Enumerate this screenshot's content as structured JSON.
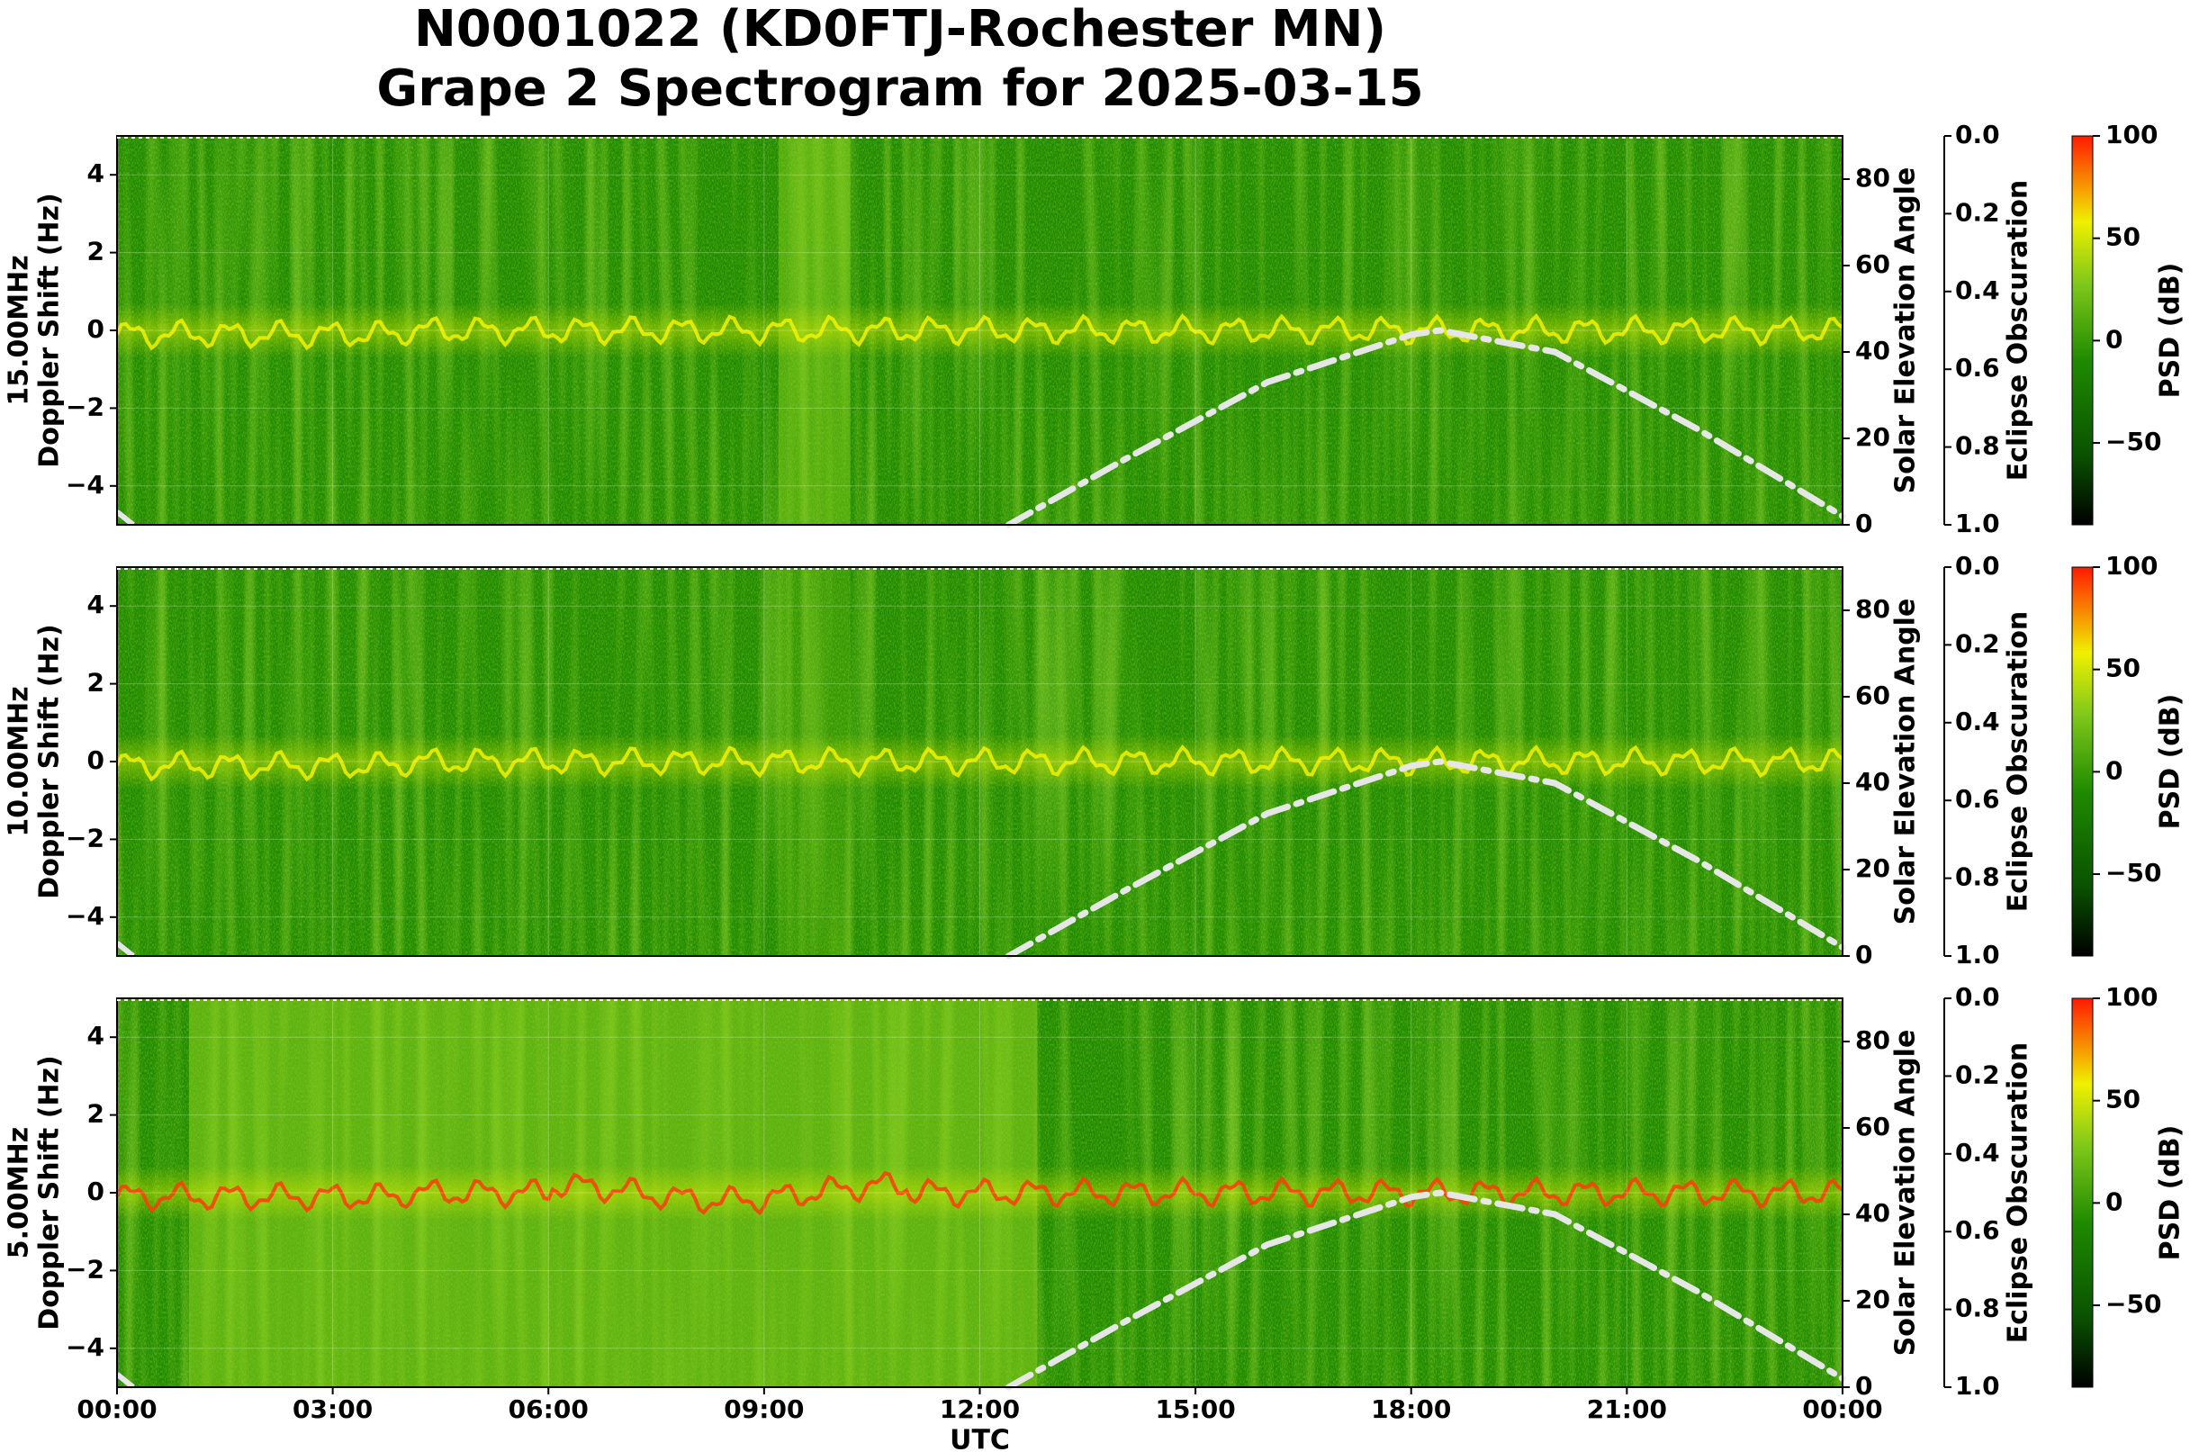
{
  "title_line1": "N0001022 (KD0FTJ-Rochester MN)",
  "title_line2": "Grape 2 Spectrogram for 2025-03-15",
  "colors": {
    "spectrogram_bg": "#1f8a00",
    "spectrogram_mid": "#8fd21f",
    "spectrogram_high": "#f2f200",
    "carrier": "#ff3b0a",
    "solar_curve": "#e6e6e6"
  },
  "chart_data": [
    {
      "type": "heatmap",
      "frequency_label": "15.00MHz",
      "ylabel": "Doppler Shift (Hz)",
      "ylim": [
        -5,
        5
      ],
      "yticks": [
        "4",
        "2",
        "0",
        "−2",
        "−4"
      ],
      "xlim": [
        "00:00",
        "24:00"
      ],
      "right_axis_1": {
        "label": "Solar Elevation Angle",
        "ylim": [
          0,
          90
        ],
        "ticks": [
          "80",
          "60",
          "40",
          "20",
          "0"
        ]
      },
      "right_axis_2": {
        "label": "Eclipse Obscuration",
        "ylim": [
          1.0,
          0.0
        ],
        "ticks": [
          "0.0",
          "0.2",
          "0.4",
          "0.6",
          "0.8",
          "1.0"
        ]
      },
      "colorbar": {
        "label": "PSD (dB)",
        "ticks": [
          "100",
          "50",
          "0",
          "−50"
        ]
      },
      "solar_elevation": {
        "x_hours": [
          12.4,
          14,
          16,
          18,
          18.4,
          20,
          22,
          24
        ],
        "y_degrees": [
          0,
          15,
          33,
          44,
          45,
          40,
          22,
          2
        ]
      }
    },
    {
      "type": "heatmap",
      "frequency_label": "10.00MHz",
      "ylabel": "Doppler Shift (Hz)",
      "ylim": [
        -5,
        5
      ],
      "yticks": [
        "4",
        "2",
        "0",
        "−2",
        "−4"
      ],
      "xlim": [
        "00:00",
        "24:00"
      ],
      "right_axis_1": {
        "label": "Solar Elevation Angle",
        "ylim": [
          0,
          90
        ],
        "ticks": [
          "80",
          "60",
          "40",
          "20",
          "0"
        ]
      },
      "right_axis_2": {
        "label": "Eclipse Obscuration",
        "ylim": [
          1.0,
          0.0
        ],
        "ticks": [
          "0.0",
          "0.2",
          "0.4",
          "0.6",
          "0.8",
          "1.0"
        ]
      },
      "colorbar": {
        "label": "PSD (dB)",
        "ticks": [
          "100",
          "50",
          "0",
          "−50"
        ]
      },
      "solar_elevation": {
        "x_hours": [
          12.4,
          14,
          16,
          18,
          18.4,
          20,
          22,
          24
        ],
        "y_degrees": [
          0,
          15,
          33,
          44,
          45,
          40,
          22,
          2
        ]
      }
    },
    {
      "type": "heatmap",
      "frequency_label": "5.00MHz",
      "ylabel": "Doppler Shift (Hz)",
      "ylim": [
        -5,
        5
      ],
      "yticks": [
        "4",
        "2",
        "0",
        "−2",
        "−4"
      ],
      "xlim": [
        "00:00",
        "24:00"
      ],
      "xticks": [
        "00:00",
        "03:00",
        "06:00",
        "09:00",
        "12:00",
        "15:00",
        "18:00",
        "21:00",
        "00:00"
      ],
      "xlabel": "UTC",
      "right_axis_1": {
        "label": "Solar Elevation Angle",
        "ylim": [
          0,
          90
        ],
        "ticks": [
          "80",
          "60",
          "40",
          "20",
          "0"
        ]
      },
      "right_axis_2": {
        "label": "Eclipse Obscuration",
        "ylim": [
          1.0,
          0.0
        ],
        "ticks": [
          "0.0",
          "0.2",
          "0.4",
          "0.6",
          "0.8",
          "1.0"
        ]
      },
      "colorbar": {
        "label": "PSD (dB)",
        "ticks": [
          "100",
          "50",
          "0",
          "−50"
        ]
      },
      "solar_elevation": {
        "x_hours": [
          12.4,
          14,
          16,
          18,
          18.4,
          20,
          22,
          24
        ],
        "y_degrees": [
          0,
          15,
          33,
          44,
          45,
          40,
          22,
          2
        ]
      }
    }
  ]
}
